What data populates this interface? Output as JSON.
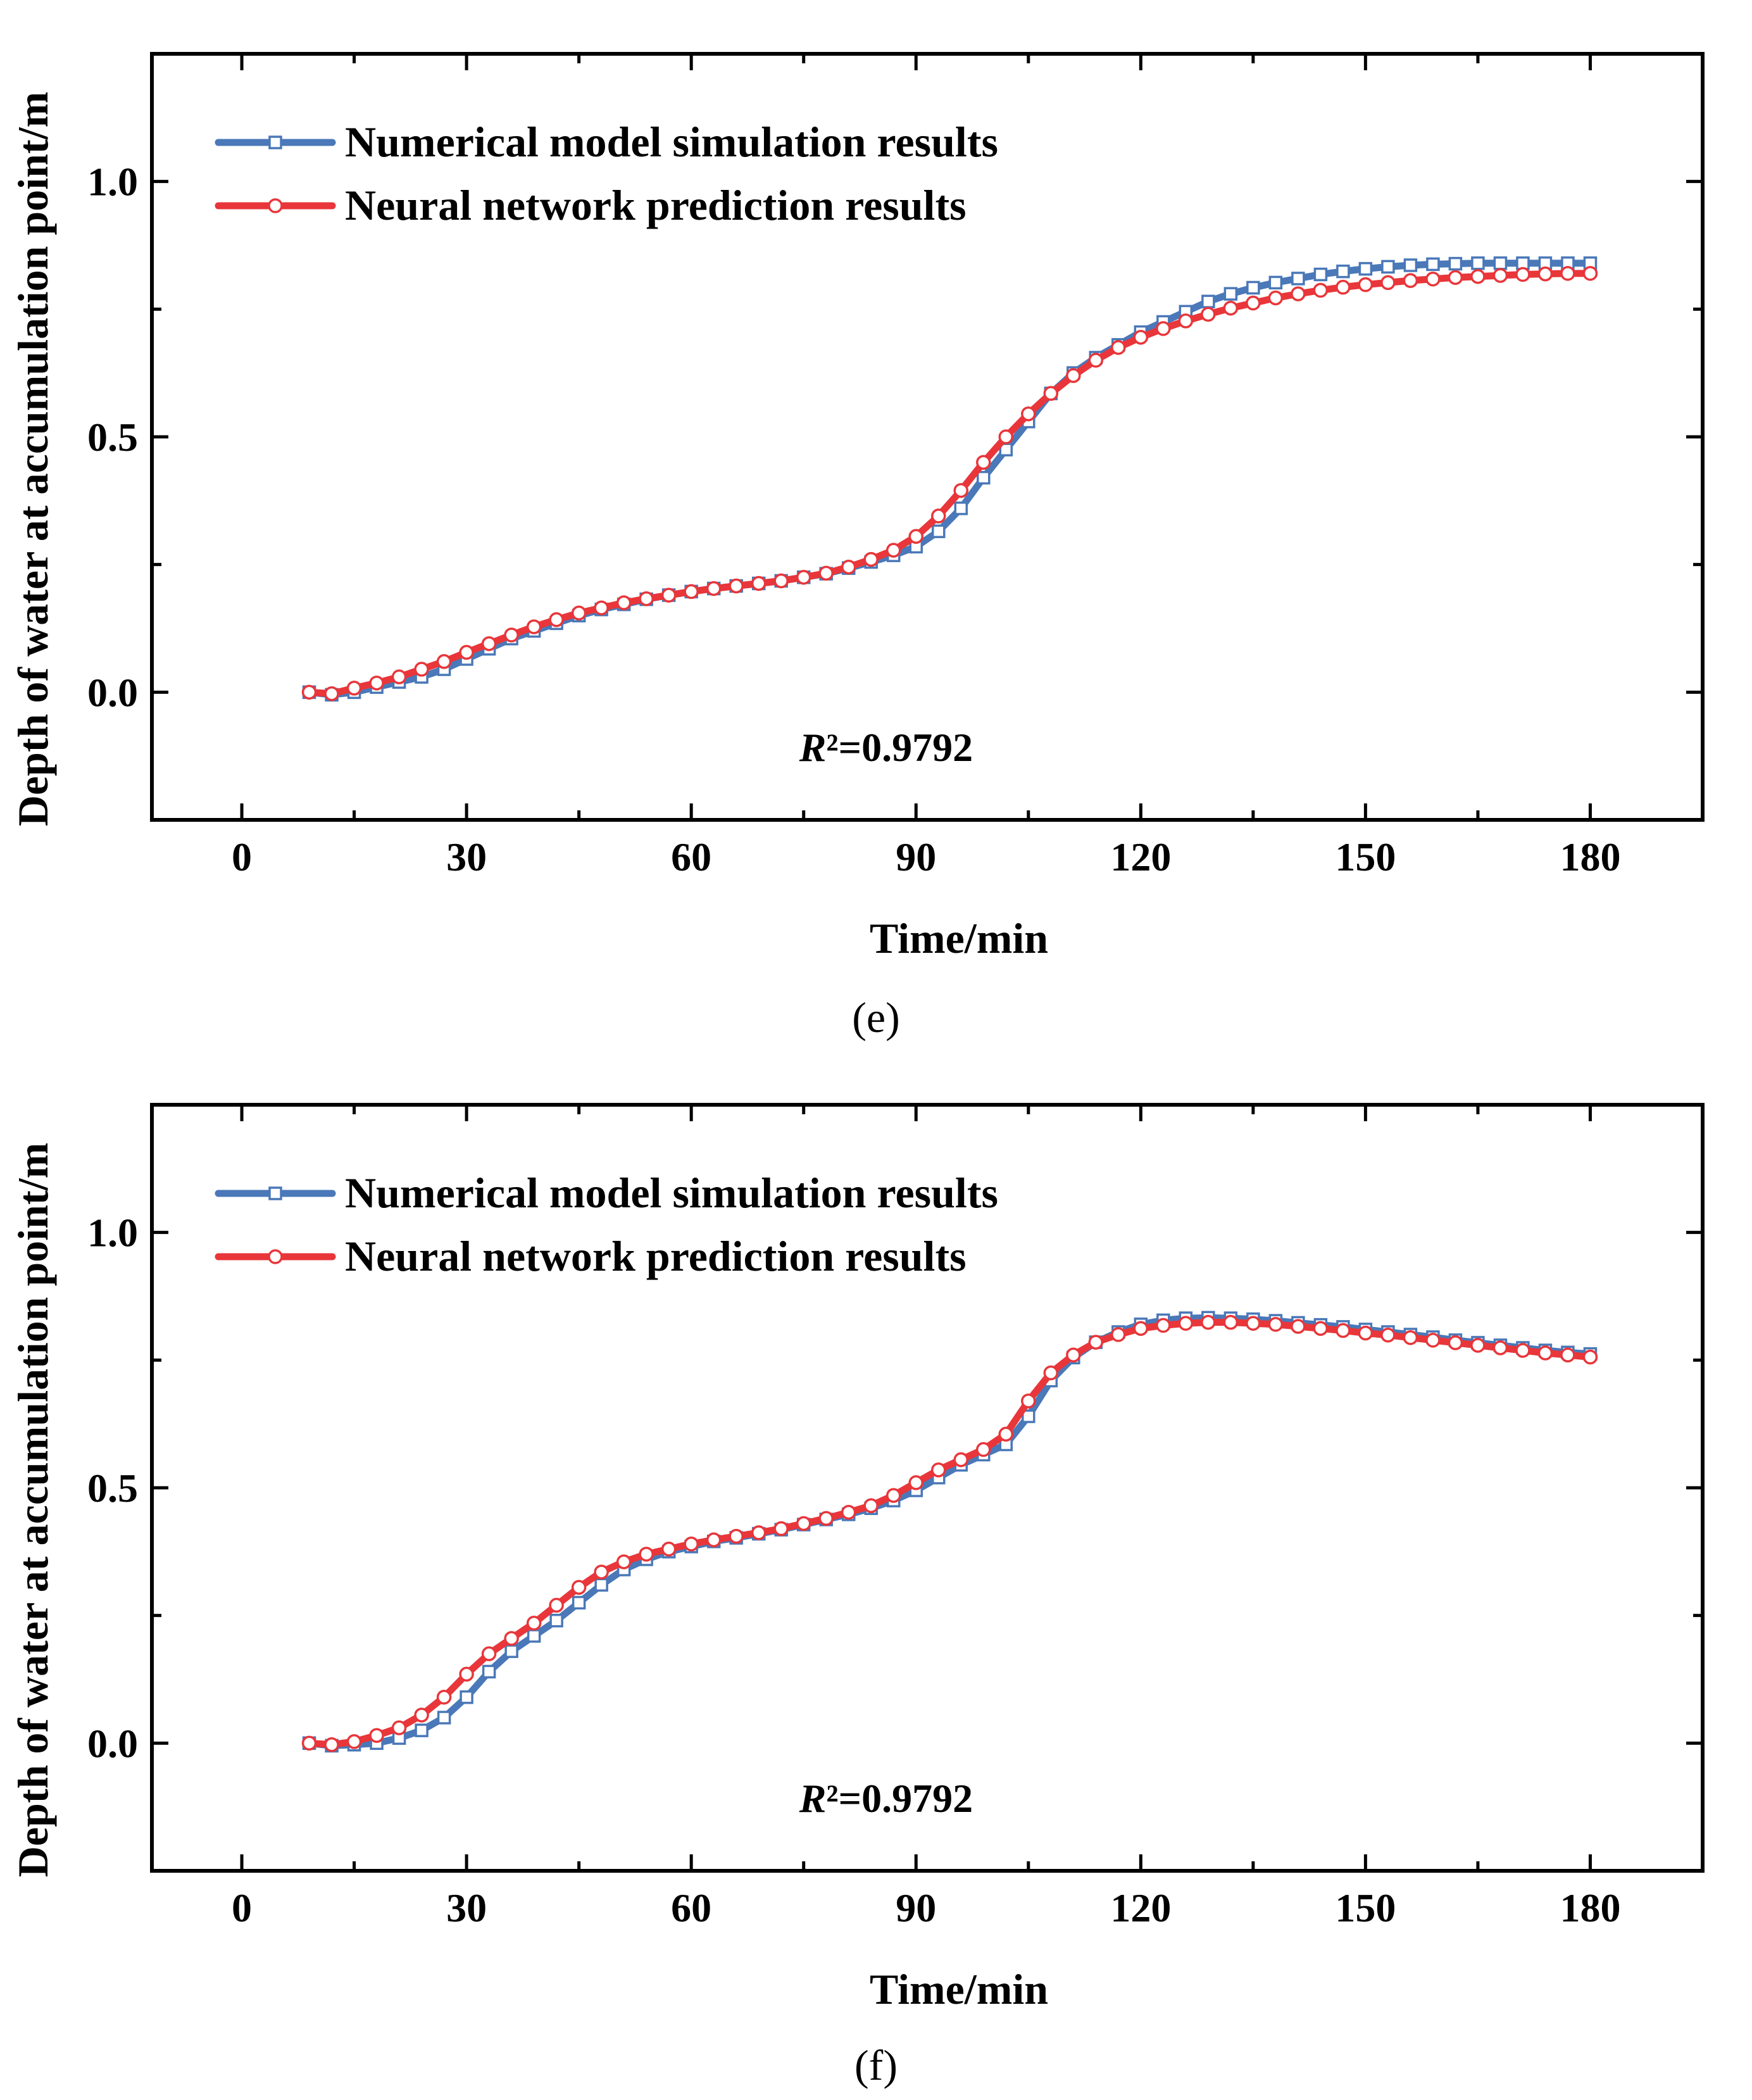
{
  "chart_data": [
    {
      "type": "line",
      "panel_label": "(e)",
      "xlabel": "Time/min",
      "ylabel": "Depth of water at accumulation point/m",
      "xlim": [
        -12,
        195
      ],
      "ylim": [
        -0.25,
        1.25
      ],
      "xticks": [
        0,
        30,
        60,
        90,
        120,
        150,
        180
      ],
      "xtick_labels": [
        "0",
        "30",
        "60",
        "90",
        "120",
        "150",
        "180"
      ],
      "yticks": [
        0.0,
        0.5,
        1.0
      ],
      "ytick_labels": [
        "0.0",
        "0.5",
        "1.0"
      ],
      "annotation": {
        "italic": "R",
        "text": "²=0.9792"
      },
      "legend_position": "top-left",
      "series": [
        {
          "name": "Numerical model simulation results",
          "color": "#4a78b8",
          "marker": "square",
          "x": [
            9,
            12,
            15,
            18,
            21,
            24,
            27,
            30,
            33,
            36,
            39,
            42,
            45,
            48,
            51,
            54,
            57,
            60,
            63,
            66,
            69,
            72,
            75,
            78,
            81,
            84,
            87,
            90,
            93,
            96,
            99,
            102,
            105,
            108,
            111,
            114,
            117,
            120,
            123,
            126,
            129,
            132,
            135,
            138,
            141,
            144,
            147,
            150,
            153,
            156,
            159,
            162,
            165,
            168,
            171,
            174,
            177,
            180
          ],
          "y": [
            0.0,
            -0.005,
            0.0,
            0.01,
            0.02,
            0.03,
            0.045,
            0.065,
            0.085,
            0.105,
            0.12,
            0.135,
            0.15,
            0.162,
            0.172,
            0.182,
            0.19,
            0.197,
            0.203,
            0.208,
            0.213,
            0.218,
            0.225,
            0.232,
            0.243,
            0.255,
            0.268,
            0.285,
            0.315,
            0.36,
            0.42,
            0.475,
            0.53,
            0.585,
            0.625,
            0.655,
            0.68,
            0.705,
            0.725,
            0.745,
            0.765,
            0.78,
            0.792,
            0.802,
            0.81,
            0.818,
            0.824,
            0.829,
            0.833,
            0.836,
            0.838,
            0.839,
            0.84,
            0.84,
            0.84,
            0.84,
            0.84,
            0.84
          ]
        },
        {
          "name": "Neural network prediction results",
          "color": "#e8363a",
          "marker": "circle",
          "x": [
            9,
            12,
            15,
            18,
            21,
            24,
            27,
            30,
            33,
            36,
            39,
            42,
            45,
            48,
            51,
            54,
            57,
            60,
            63,
            66,
            69,
            72,
            75,
            78,
            81,
            84,
            87,
            90,
            93,
            96,
            99,
            102,
            105,
            108,
            111,
            114,
            117,
            120,
            123,
            126,
            129,
            132,
            135,
            138,
            141,
            144,
            147,
            150,
            153,
            156,
            159,
            162,
            165,
            168,
            171,
            174,
            177,
            180
          ],
          "y": [
            0.0,
            -0.003,
            0.008,
            0.018,
            0.03,
            0.045,
            0.06,
            0.078,
            0.095,
            0.112,
            0.128,
            0.142,
            0.155,
            0.165,
            0.175,
            0.183,
            0.19,
            0.197,
            0.203,
            0.208,
            0.213,
            0.218,
            0.225,
            0.233,
            0.245,
            0.26,
            0.278,
            0.305,
            0.345,
            0.395,
            0.45,
            0.5,
            0.545,
            0.585,
            0.62,
            0.65,
            0.675,
            0.695,
            0.712,
            0.727,
            0.74,
            0.752,
            0.762,
            0.772,
            0.78,
            0.787,
            0.793,
            0.798,
            0.802,
            0.806,
            0.809,
            0.812,
            0.814,
            0.816,
            0.818,
            0.819,
            0.82,
            0.82
          ]
        }
      ]
    },
    {
      "type": "line",
      "panel_label": "(f)",
      "xlabel": "Time/min",
      "ylabel": "Depth of water at accumulation point/m",
      "xlim": [
        -12,
        195
      ],
      "ylim": [
        -0.25,
        1.25
      ],
      "xticks": [
        0,
        30,
        60,
        90,
        120,
        150,
        180
      ],
      "xtick_labels": [
        "0",
        "30",
        "60",
        "90",
        "120",
        "150",
        "180"
      ],
      "yticks": [
        0.0,
        0.5,
        1.0
      ],
      "ytick_labels": [
        "0.0",
        "0.5",
        "1.0"
      ],
      "annotation": {
        "italic": "R",
        "text": "²=0.9792"
      },
      "legend_position": "top-left",
      "series": [
        {
          "name": "Numerical model simulation results",
          "color": "#4a78b8",
          "marker": "square",
          "x": [
            9,
            12,
            15,
            18,
            21,
            24,
            27,
            30,
            33,
            36,
            39,
            42,
            45,
            48,
            51,
            54,
            57,
            60,
            63,
            66,
            69,
            72,
            75,
            78,
            81,
            84,
            87,
            90,
            93,
            96,
            99,
            102,
            105,
            108,
            111,
            114,
            117,
            120,
            123,
            126,
            129,
            132,
            135,
            138,
            141,
            144,
            147,
            150,
            153,
            156,
            159,
            162,
            165,
            168,
            171,
            174,
            177,
            180
          ],
          "y": [
            0.0,
            -0.005,
            -0.003,
            0.0,
            0.01,
            0.025,
            0.05,
            0.09,
            0.14,
            0.18,
            0.21,
            0.24,
            0.275,
            0.31,
            0.34,
            0.36,
            0.375,
            0.385,
            0.395,
            0.402,
            0.41,
            0.418,
            0.428,
            0.438,
            0.448,
            0.46,
            0.475,
            0.495,
            0.52,
            0.545,
            0.565,
            0.585,
            0.64,
            0.71,
            0.755,
            0.785,
            0.805,
            0.82,
            0.828,
            0.832,
            0.833,
            0.832,
            0.83,
            0.827,
            0.823,
            0.819,
            0.815,
            0.81,
            0.805,
            0.8,
            0.795,
            0.789,
            0.784,
            0.779,
            0.774,
            0.769,
            0.765,
            0.762
          ]
        },
        {
          "name": "Neural network prediction results",
          "color": "#e8363a",
          "marker": "circle",
          "x": [
            9,
            12,
            15,
            18,
            21,
            24,
            27,
            30,
            33,
            36,
            39,
            42,
            45,
            48,
            51,
            54,
            57,
            60,
            63,
            66,
            69,
            72,
            75,
            78,
            81,
            84,
            87,
            90,
            93,
            96,
            99,
            102,
            105,
            108,
            111,
            114,
            117,
            120,
            123,
            126,
            129,
            132,
            135,
            138,
            141,
            144,
            147,
            150,
            153,
            156,
            159,
            162,
            165,
            168,
            171,
            174,
            177,
            180
          ],
          "y": [
            0.0,
            -0.003,
            0.003,
            0.015,
            0.03,
            0.055,
            0.09,
            0.135,
            0.175,
            0.205,
            0.235,
            0.27,
            0.305,
            0.335,
            0.355,
            0.37,
            0.38,
            0.39,
            0.398,
            0.405,
            0.412,
            0.42,
            0.43,
            0.44,
            0.452,
            0.465,
            0.485,
            0.51,
            0.535,
            0.555,
            0.575,
            0.605,
            0.67,
            0.725,
            0.76,
            0.785,
            0.8,
            0.812,
            0.818,
            0.822,
            0.824,
            0.824,
            0.822,
            0.82,
            0.816,
            0.812,
            0.808,
            0.803,
            0.799,
            0.794,
            0.789,
            0.784,
            0.779,
            0.774,
            0.769,
            0.764,
            0.76,
            0.756
          ]
        }
      ]
    }
  ]
}
